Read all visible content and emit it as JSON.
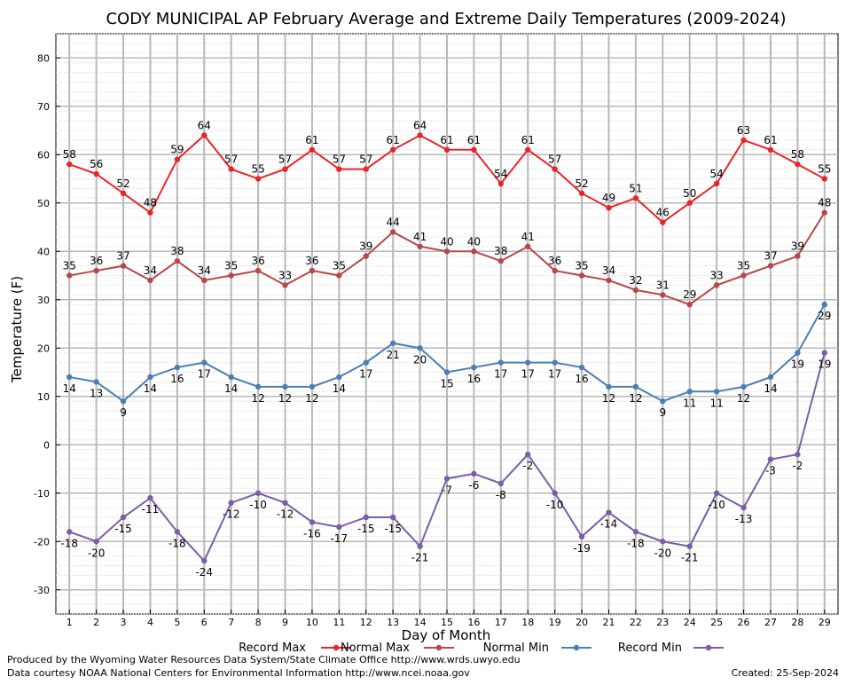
{
  "chart_data": {
    "type": "line",
    "title": "CODY MUNICIPAL AP February Average and Extreme Daily Temperatures (2009-2024)",
    "xlabel": "Day of Month",
    "ylabel": "Temperature (F)",
    "ylim": [
      -35,
      85
    ],
    "yticks": [
      -30,
      -20,
      -10,
      0,
      10,
      20,
      30,
      40,
      50,
      60,
      70,
      80
    ],
    "grid": true,
    "legend": "bottom",
    "x": [
      1,
      2,
      3,
      4,
      5,
      6,
      7,
      8,
      9,
      10,
      11,
      12,
      13,
      14,
      15,
      16,
      17,
      18,
      19,
      20,
      21,
      22,
      23,
      24,
      25,
      26,
      27,
      28,
      29
    ],
    "series": [
      {
        "name": "Record Max",
        "color": "#e8262a",
        "values": [
          58,
          56,
          52,
          48,
          59,
          64,
          57,
          55,
          57,
          61,
          57,
          57,
          61,
          64,
          61,
          61,
          54,
          61,
          57,
          52,
          49,
          51,
          46,
          50,
          54,
          63,
          61,
          58,
          55
        ]
      },
      {
        "name": "Normal Max",
        "color": "#b8474a",
        "values": [
          35,
          36,
          37,
          34,
          38,
          34,
          35,
          36,
          33,
          36,
          35,
          39,
          44,
          41,
          40,
          40,
          38,
          41,
          36,
          35,
          34,
          32,
          31,
          29,
          33,
          35,
          37,
          39,
          48
        ]
      },
      {
        "name": "Normal Min",
        "color": "#4b7fb3",
        "values": [
          14,
          13,
          9,
          14,
          16,
          17,
          14,
          12,
          12,
          12,
          14,
          17,
          21,
          20,
          15,
          16,
          17,
          17,
          17,
          16,
          12,
          12,
          9,
          11,
          11,
          12,
          14,
          19,
          29
        ]
      },
      {
        "name": "Record Min",
        "color": "#7b5ea7",
        "values": [
          -18,
          -20,
          -15,
          -11,
          -18,
          -24,
          -12,
          -10,
          -12,
          -16,
          -17,
          -15,
          -15,
          -21,
          -7,
          -6,
          -8,
          -2,
          -10,
          -19,
          -14,
          -18,
          -20,
          -21,
          -10,
          -13,
          -3,
          -2,
          19
        ]
      }
    ]
  },
  "footer": {
    "produced_by": "Produced by the Wyoming Water Resources Data System/State Climate Office http://www.wrds.uwyo.edu",
    "courtesy": "Data courtesy NOAA National Centers for Environmental Information http://www.ncei.noaa.gov",
    "created": "Created: 25-Sep-2024"
  }
}
